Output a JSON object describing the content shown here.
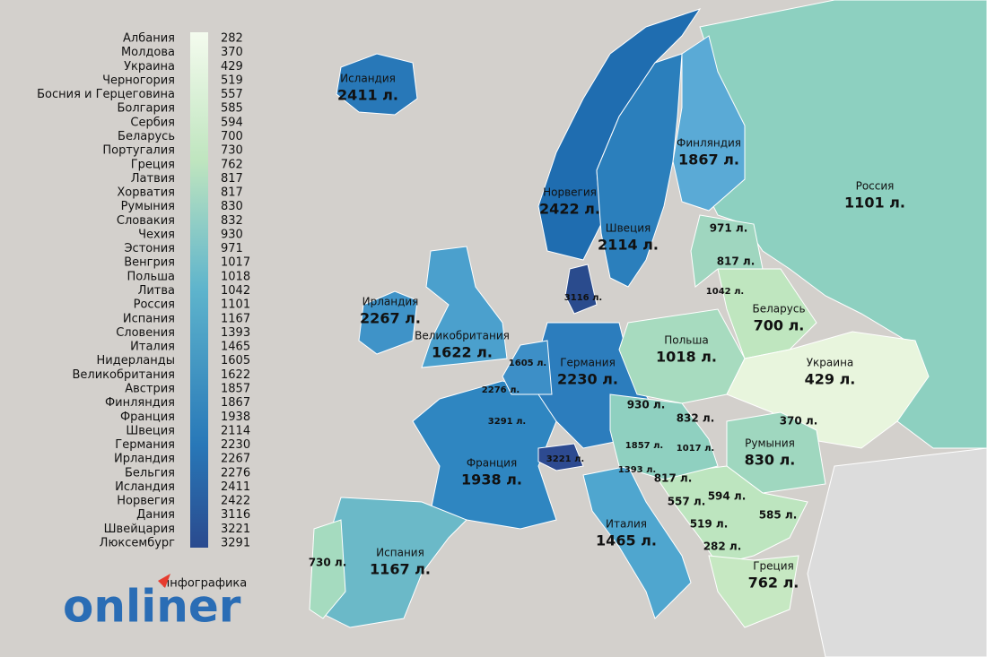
{
  "legend": {
    "items": [
      {
        "name": "Албания",
        "value": 282
      },
      {
        "name": "Молдова",
        "value": 370
      },
      {
        "name": "Украина",
        "value": 429
      },
      {
        "name": "Черногория",
        "value": 519
      },
      {
        "name": "Босния и Герцеговина",
        "value": 557
      },
      {
        "name": "Болгария",
        "value": 585
      },
      {
        "name": "Сербия",
        "value": 594
      },
      {
        "name": "Беларусь",
        "value": 700
      },
      {
        "name": "Португалия",
        "value": 730
      },
      {
        "name": "Греция",
        "value": 762
      },
      {
        "name": "Латвия",
        "value": 817
      },
      {
        "name": "Хорватия",
        "value": 817
      },
      {
        "name": "Румыния",
        "value": 830
      },
      {
        "name": "Словакия",
        "value": 832
      },
      {
        "name": "Чехия",
        "value": 930
      },
      {
        "name": "Эстония",
        "value": 971
      },
      {
        "name": "Венгрия",
        "value": 1017
      },
      {
        "name": "Польша",
        "value": 1018
      },
      {
        "name": "Литва",
        "value": 1042
      },
      {
        "name": "Россия",
        "value": 1101
      },
      {
        "name": "Испания",
        "value": 1167
      },
      {
        "name": "Словения",
        "value": 1393
      },
      {
        "name": "Италия",
        "value": 1465
      },
      {
        "name": "Нидерланды",
        "value": 1605
      },
      {
        "name": "Великобритания",
        "value": 1622
      },
      {
        "name": "Австрия",
        "value": 1857
      },
      {
        "name": "Финляндия",
        "value": 1867
      },
      {
        "name": "Франция",
        "value": 1938
      },
      {
        "name": "Швеция",
        "value": 2114
      },
      {
        "name": "Германия",
        "value": 2230
      },
      {
        "name": "Ирландия",
        "value": 2267
      },
      {
        "name": "Бельгия",
        "value": 2276
      },
      {
        "name": "Исландия",
        "value": 2411
      },
      {
        "name": "Норвегия",
        "value": 2422
      },
      {
        "name": "Дания",
        "value": 3116
      },
      {
        "name": "Швейцария",
        "value": 3221
      },
      {
        "name": "Люксембург",
        "value": 3291
      }
    ]
  },
  "map_labels": [
    {
      "name": "Исландия",
      "value": "2411 л."
    },
    {
      "name": "Норвегия",
      "value": "2422 л."
    },
    {
      "name": "Швеция",
      "value": "2114 л."
    },
    {
      "name": "Финляндия",
      "value": "1867 л."
    },
    {
      "name": "Россия",
      "value": "1101 л."
    },
    {
      "value": "971 л."
    },
    {
      "value": "817 л."
    },
    {
      "value": "1042 л."
    },
    {
      "name": "Беларусь",
      "value": "700 л."
    },
    {
      "value": "3116 л."
    },
    {
      "name": "Ирландия",
      "value": "2267 л."
    },
    {
      "name": "Великобритания",
      "value": "1622 л."
    },
    {
      "name": "Польша",
      "value": "1018 л."
    },
    {
      "name": "Украина",
      "value": "429 л."
    },
    {
      "value": "1605 л."
    },
    {
      "name": "Германия",
      "value": "2230 л."
    },
    {
      "value": "2276 л."
    },
    {
      "value": "930 л."
    },
    {
      "value": "832 л."
    },
    {
      "value": "370 л."
    },
    {
      "value": "3291 л."
    },
    {
      "value": "1857 л."
    },
    {
      "value": "1017 л."
    },
    {
      "name": "Румыния",
      "value": "830 л."
    },
    {
      "value": "3221 л."
    },
    {
      "name": "Франция",
      "value": "1938 л."
    },
    {
      "value": "1393 л."
    },
    {
      "value": "817 л."
    },
    {
      "value": "557 л."
    },
    {
      "value": "594 л."
    },
    {
      "value": "585 л."
    },
    {
      "value": "519 л."
    },
    {
      "value": "282 л."
    },
    {
      "name": "Италия",
      "value": "1465 л."
    },
    {
      "value": "730 л."
    },
    {
      "name": "Испания",
      "value": "1167 л."
    },
    {
      "name": "Греция",
      "value": "762 л."
    }
  ],
  "brand": {
    "tag": "инфографика",
    "logo": "onliner"
  }
}
